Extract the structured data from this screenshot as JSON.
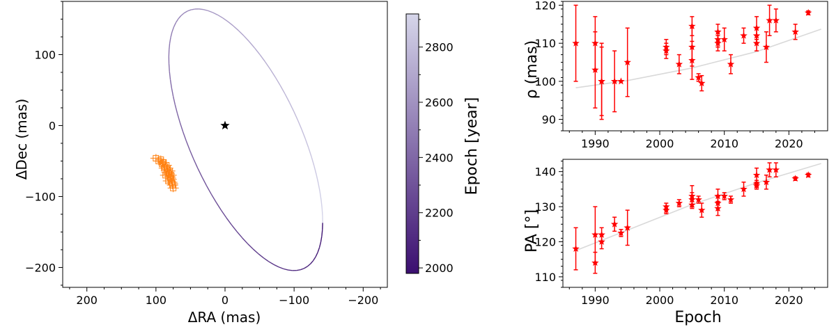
{
  "chart_data": [
    {
      "type": "scatter",
      "panel": "orbit-sky-plane",
      "xlabel": "ΔRA (mas)",
      "ylabel": "ΔDec (mas)",
      "xlim": [
        235,
        -235
      ],
      "ylim": [
        -228,
        175
      ],
      "xticks": [
        200,
        100,
        0,
        -100,
        -200
      ],
      "yticks": [
        100,
        0,
        -100,
        -200
      ],
      "xtick_labels": [
        "200",
        "100",
        "0",
        "−100",
        "−200"
      ],
      "ytick_labels": [
        "100",
        "0",
        "−100",
        "−200"
      ],
      "star_marker": {
        "x": 0,
        "y": 0
      },
      "orbit_ellipse": {
        "center": [
          -30,
          -20
        ],
        "semi_major": 200,
        "semi_minor": 80,
        "angle_deg": 65
      },
      "observations": {
        "x": [
          100,
          96,
          93,
          91,
          89,
          87,
          85,
          84,
          83,
          82,
          81,
          80,
          79,
          78,
          77,
          76,
          75,
          88,
          86,
          80,
          82,
          78,
          84,
          76,
          90
        ],
        "y": [
          -46,
          -50,
          -48,
          -54,
          -52,
          -58,
          -56,
          -62,
          -60,
          -66,
          -68,
          -72,
          -74,
          -76,
          -80,
          -84,
          -88,
          -60,
          -70,
          -64,
          -78,
          -70,
          -66,
          -82,
          -52
        ]
      },
      "colorbar": {
        "label": "Epoch [year]",
        "range": [
          1980,
          2920
        ],
        "ticks": [
          2000,
          2200,
          2400,
          2600,
          2800
        ],
        "tick_labels": [
          "2000",
          "2200",
          "2400",
          "2600",
          "2800"
        ],
        "color_low": "#3b0f70",
        "color_high": "#d6d6ea"
      },
      "colors": {
        "star": "#000000",
        "observations": "#ff7f0e"
      }
    },
    {
      "type": "scatter",
      "panel": "separation-vs-epoch",
      "xlabel": "",
      "ylabel": "ρ (mas)",
      "xlim": [
        1985,
        2026
      ],
      "ylim": [
        87,
        121
      ],
      "xticks": [
        1990,
        2000,
        2010,
        2020
      ],
      "yticks": [
        90,
        100,
        110,
        120
      ],
      "xtick_labels": [
        "1990",
        "2000",
        "2010",
        "2020"
      ],
      "ytick_labels": [
        "90",
        "100",
        "110",
        "120"
      ],
      "model_line": {
        "x": [
          1987,
          1995,
          2005,
          2015,
          2025
        ],
        "y": [
          98.3,
          100.2,
          103.5,
          107.8,
          113.7
        ]
      },
      "points": [
        {
          "x": 1987,
          "y": 110,
          "err": 10
        },
        {
          "x": 1990,
          "y": 110,
          "err": 7
        },
        {
          "x": 1990,
          "y": 103,
          "err": 10
        },
        {
          "x": 1991,
          "y": 100,
          "err": 10
        },
        {
          "x": 1991,
          "y": 100,
          "err": 9
        },
        {
          "x": 1993,
          "y": 100,
          "err": 8
        },
        {
          "x": 1994,
          "y": 100,
          "err": 0
        },
        {
          "x": 1995,
          "y": 105,
          "err": 9
        },
        {
          "x": 2001,
          "y": 109,
          "err": 2
        },
        {
          "x": 2001,
          "y": 108,
          "err": 2
        },
        {
          "x": 2003,
          "y": 104.5,
          "err": 2.5
        },
        {
          "x": 2005,
          "y": 114.5,
          "err": 2.5
        },
        {
          "x": 2005,
          "y": 109,
          "err": 5
        },
        {
          "x": 2005,
          "y": 105.5,
          "err": 5
        },
        {
          "x": 2006,
          "y": 101,
          "err": 1
        },
        {
          "x": 2006.5,
          "y": 99.5,
          "err": 2
        },
        {
          "x": 2009,
          "y": 113,
          "err": 2
        },
        {
          "x": 2009,
          "y": 111,
          "err": 2
        },
        {
          "x": 2009,
          "y": 110,
          "err": 2
        },
        {
          "x": 2010,
          "y": 111,
          "err": 3
        },
        {
          "x": 2011,
          "y": 104.5,
          "err": 2.5
        },
        {
          "x": 2013,
          "y": 112,
          "err": 2
        },
        {
          "x": 2015,
          "y": 114,
          "err": 3
        },
        {
          "x": 2015,
          "y": 112,
          "err": 2
        },
        {
          "x": 2015,
          "y": 110,
          "err": 2
        },
        {
          "x": 2016.5,
          "y": 109,
          "err": 4
        },
        {
          "x": 2017,
          "y": 116,
          "err": 4
        },
        {
          "x": 2018,
          "y": 116,
          "err": 3
        },
        {
          "x": 2021,
          "y": 113,
          "err": 2
        },
        {
          "x": 2023,
          "y": 118,
          "err": 0.5
        }
      ],
      "colors": {
        "points": "#ff0000",
        "model_line": "#d9d9d9"
      }
    },
    {
      "type": "scatter",
      "panel": "position-angle-vs-epoch",
      "xlabel": "Epoch",
      "ylabel": "PA [°]",
      "xlim": [
        1985,
        2026
      ],
      "ylim": [
        107,
        143.5
      ],
      "xticks": [
        1990,
        2000,
        2010,
        2020
      ],
      "yticks": [
        110,
        120,
        130,
        140
      ],
      "xtick_labels": [
        "1990",
        "2000",
        "2010",
        "2020"
      ],
      "ytick_labels": [
        "110",
        "120",
        "130",
        "140"
      ],
      "model_line": {
        "x": [
          1987,
          1995,
          2005,
          2015,
          2025
        ],
        "y": [
          117.5,
          123.3,
          130.6,
          136.8,
          142.3
        ]
      },
      "points": [
        {
          "x": 1987,
          "y": 118,
          "err": 6
        },
        {
          "x": 1990,
          "y": 122,
          "err": 8
        },
        {
          "x": 1990,
          "y": 114,
          "err": 3
        },
        {
          "x": 1991,
          "y": 122,
          "err": 2
        },
        {
          "x": 1991,
          "y": 120,
          "err": 2
        },
        {
          "x": 1993,
          "y": 125,
          "err": 2
        },
        {
          "x": 1994,
          "y": 122.5,
          "err": 1
        },
        {
          "x": 1995,
          "y": 124,
          "err": 5
        },
        {
          "x": 2001,
          "y": 130,
          "err": 1
        },
        {
          "x": 2001,
          "y": 129,
          "err": 1
        },
        {
          "x": 2003,
          "y": 131,
          "err": 1
        },
        {
          "x": 2005,
          "y": 133,
          "err": 3
        },
        {
          "x": 2005,
          "y": 132,
          "err": 2
        },
        {
          "x": 2005,
          "y": 130.5,
          "err": 1
        },
        {
          "x": 2006,
          "y": 132,
          "err": 1
        },
        {
          "x": 2006.5,
          "y": 129,
          "err": 2
        },
        {
          "x": 2009,
          "y": 133,
          "err": 2
        },
        {
          "x": 2009,
          "y": 131,
          "err": 2
        },
        {
          "x": 2009,
          "y": 129.5,
          "err": 2
        },
        {
          "x": 2010,
          "y": 133,
          "err": 1
        },
        {
          "x": 2011,
          "y": 132,
          "err": 1
        },
        {
          "x": 2013,
          "y": 135,
          "err": 2
        },
        {
          "x": 2015,
          "y": 139,
          "err": 2
        },
        {
          "x": 2015,
          "y": 136.5,
          "err": 1
        },
        {
          "x": 2015,
          "y": 136,
          "err": 1
        },
        {
          "x": 2016.5,
          "y": 137,
          "err": 2
        },
        {
          "x": 2017,
          "y": 140.5,
          "err": 2
        },
        {
          "x": 2018,
          "y": 140.5,
          "err": 2
        },
        {
          "x": 2021,
          "y": 138,
          "err": 0.5
        },
        {
          "x": 2023,
          "y": 139,
          "err": 0.5
        }
      ],
      "colors": {
        "points": "#ff0000",
        "model_line": "#d9d9d9"
      }
    }
  ]
}
